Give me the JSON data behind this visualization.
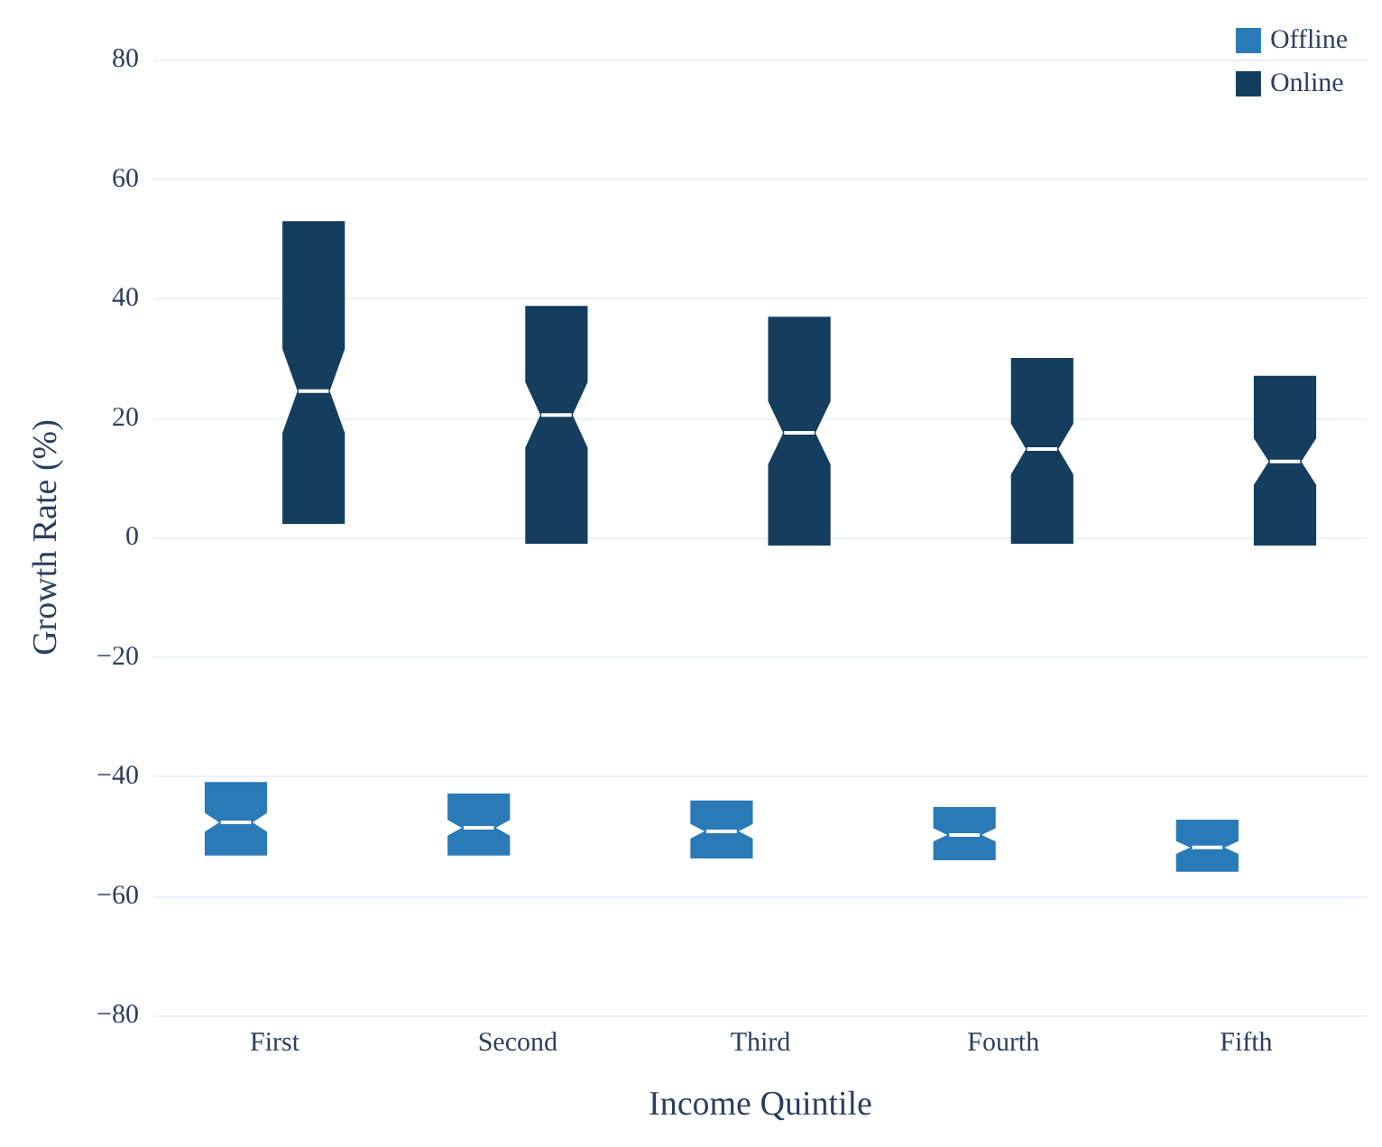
{
  "chart_data": {
    "type": "box",
    "xlabel": "Income Quintile",
    "ylabel": "Growth Rate (%)",
    "categories": [
      "First",
      "Second",
      "Third",
      "Fourth",
      "Fifth"
    ],
    "series": [
      {
        "name": "Offline",
        "color": "#2a7ab8",
        "boxes": [
          {
            "low": -53.1,
            "q1": -53.1,
            "median": -47.7,
            "q3": -41.1,
            "high": -41.1
          },
          {
            "low": -53.1,
            "q1": -53.1,
            "median": -48.6,
            "q3": -43.0,
            "high": -43.0
          },
          {
            "low": -53.6,
            "q1": -53.6,
            "median": -49.2,
            "q3": -44.2,
            "high": -44.2
          },
          {
            "low": -53.9,
            "q1": -53.9,
            "median": -49.8,
            "q3": -45.3,
            "high": -45.3
          },
          {
            "low": -55.8,
            "q1": -55.8,
            "median": -51.9,
            "q3": -47.4,
            "high": -47.4
          }
        ]
      },
      {
        "name": "Online",
        "color": "#143d5e",
        "boxes": [
          {
            "low": 2.4,
            "q1": 2.4,
            "median": 24.5,
            "q3": 52.8,
            "high": 52.8
          },
          {
            "low": -0.9,
            "q1": -0.9,
            "median": 20.5,
            "q3": 38.6,
            "high": 38.6
          },
          {
            "low": -1.2,
            "q1": -1.2,
            "median": 17.5,
            "q3": 36.8,
            "high": 36.8
          },
          {
            "low": -0.9,
            "q1": -0.9,
            "median": 14.8,
            "q3": 29.9,
            "high": 29.9
          },
          {
            "low": -1.2,
            "q1": -1.2,
            "median": 12.7,
            "q3": 26.9,
            "high": 26.9
          }
        ]
      }
    ],
    "ylim": [
      -80,
      80
    ],
    "yticks": [
      -80,
      -60,
      -40,
      -20,
      0,
      20,
      40,
      60,
      80
    ],
    "grid": "y",
    "legend": "top right"
  }
}
